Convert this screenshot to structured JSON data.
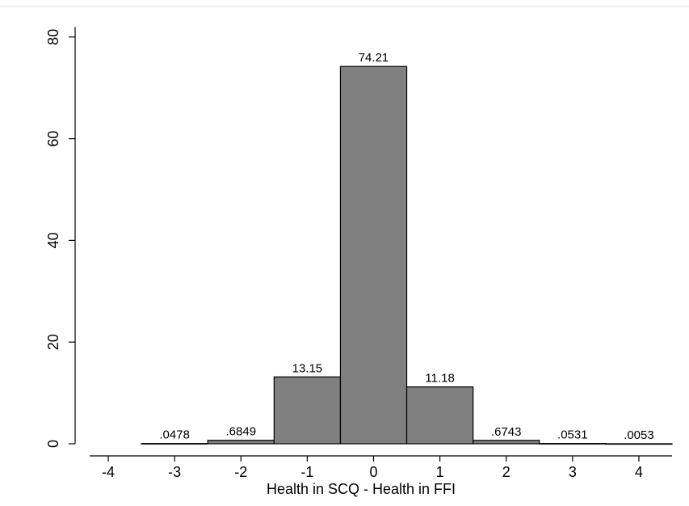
{
  "chart_data": {
    "type": "bar",
    "title": "",
    "xlabel": "Health in SCQ - Health in FFI",
    "ylabel": "",
    "xlim": [
      -4.5,
      4.5
    ],
    "ylim": [
      0,
      82
    ],
    "xticks": [
      "-4",
      "-3",
      "-2",
      "-1",
      "0",
      "1",
      "2",
      "3",
      "4"
    ],
    "xtick_values": [
      -4,
      -3,
      -2,
      -1,
      0,
      1,
      2,
      3,
      4
    ],
    "yticks": [
      "0",
      "20",
      "40",
      "60",
      "80"
    ],
    "ytick_values": [
      0,
      20,
      40,
      60,
      80
    ],
    "bar_width": 1,
    "bars": [
      {
        "x": -3,
        "value": 0.0478,
        "label": ".0478"
      },
      {
        "x": -2,
        "value": 0.6849,
        "label": ".6849"
      },
      {
        "x": -1,
        "value": 13.15,
        "label": "13.15"
      },
      {
        "x": 0,
        "value": 74.21,
        "label": "74.21"
      },
      {
        "x": 1,
        "value": 11.18,
        "label": "11.18"
      },
      {
        "x": 2,
        "value": 0.6743,
        "label": ".6743"
      },
      {
        "x": 3,
        "value": 0.0531,
        "label": ".0531"
      },
      {
        "x": 4,
        "value": 0.0053,
        "label": ".0053"
      }
    ],
    "bar_color": "#808080",
    "bar_edge_color": "#000000",
    "grid": false,
    "legend": "none"
  }
}
